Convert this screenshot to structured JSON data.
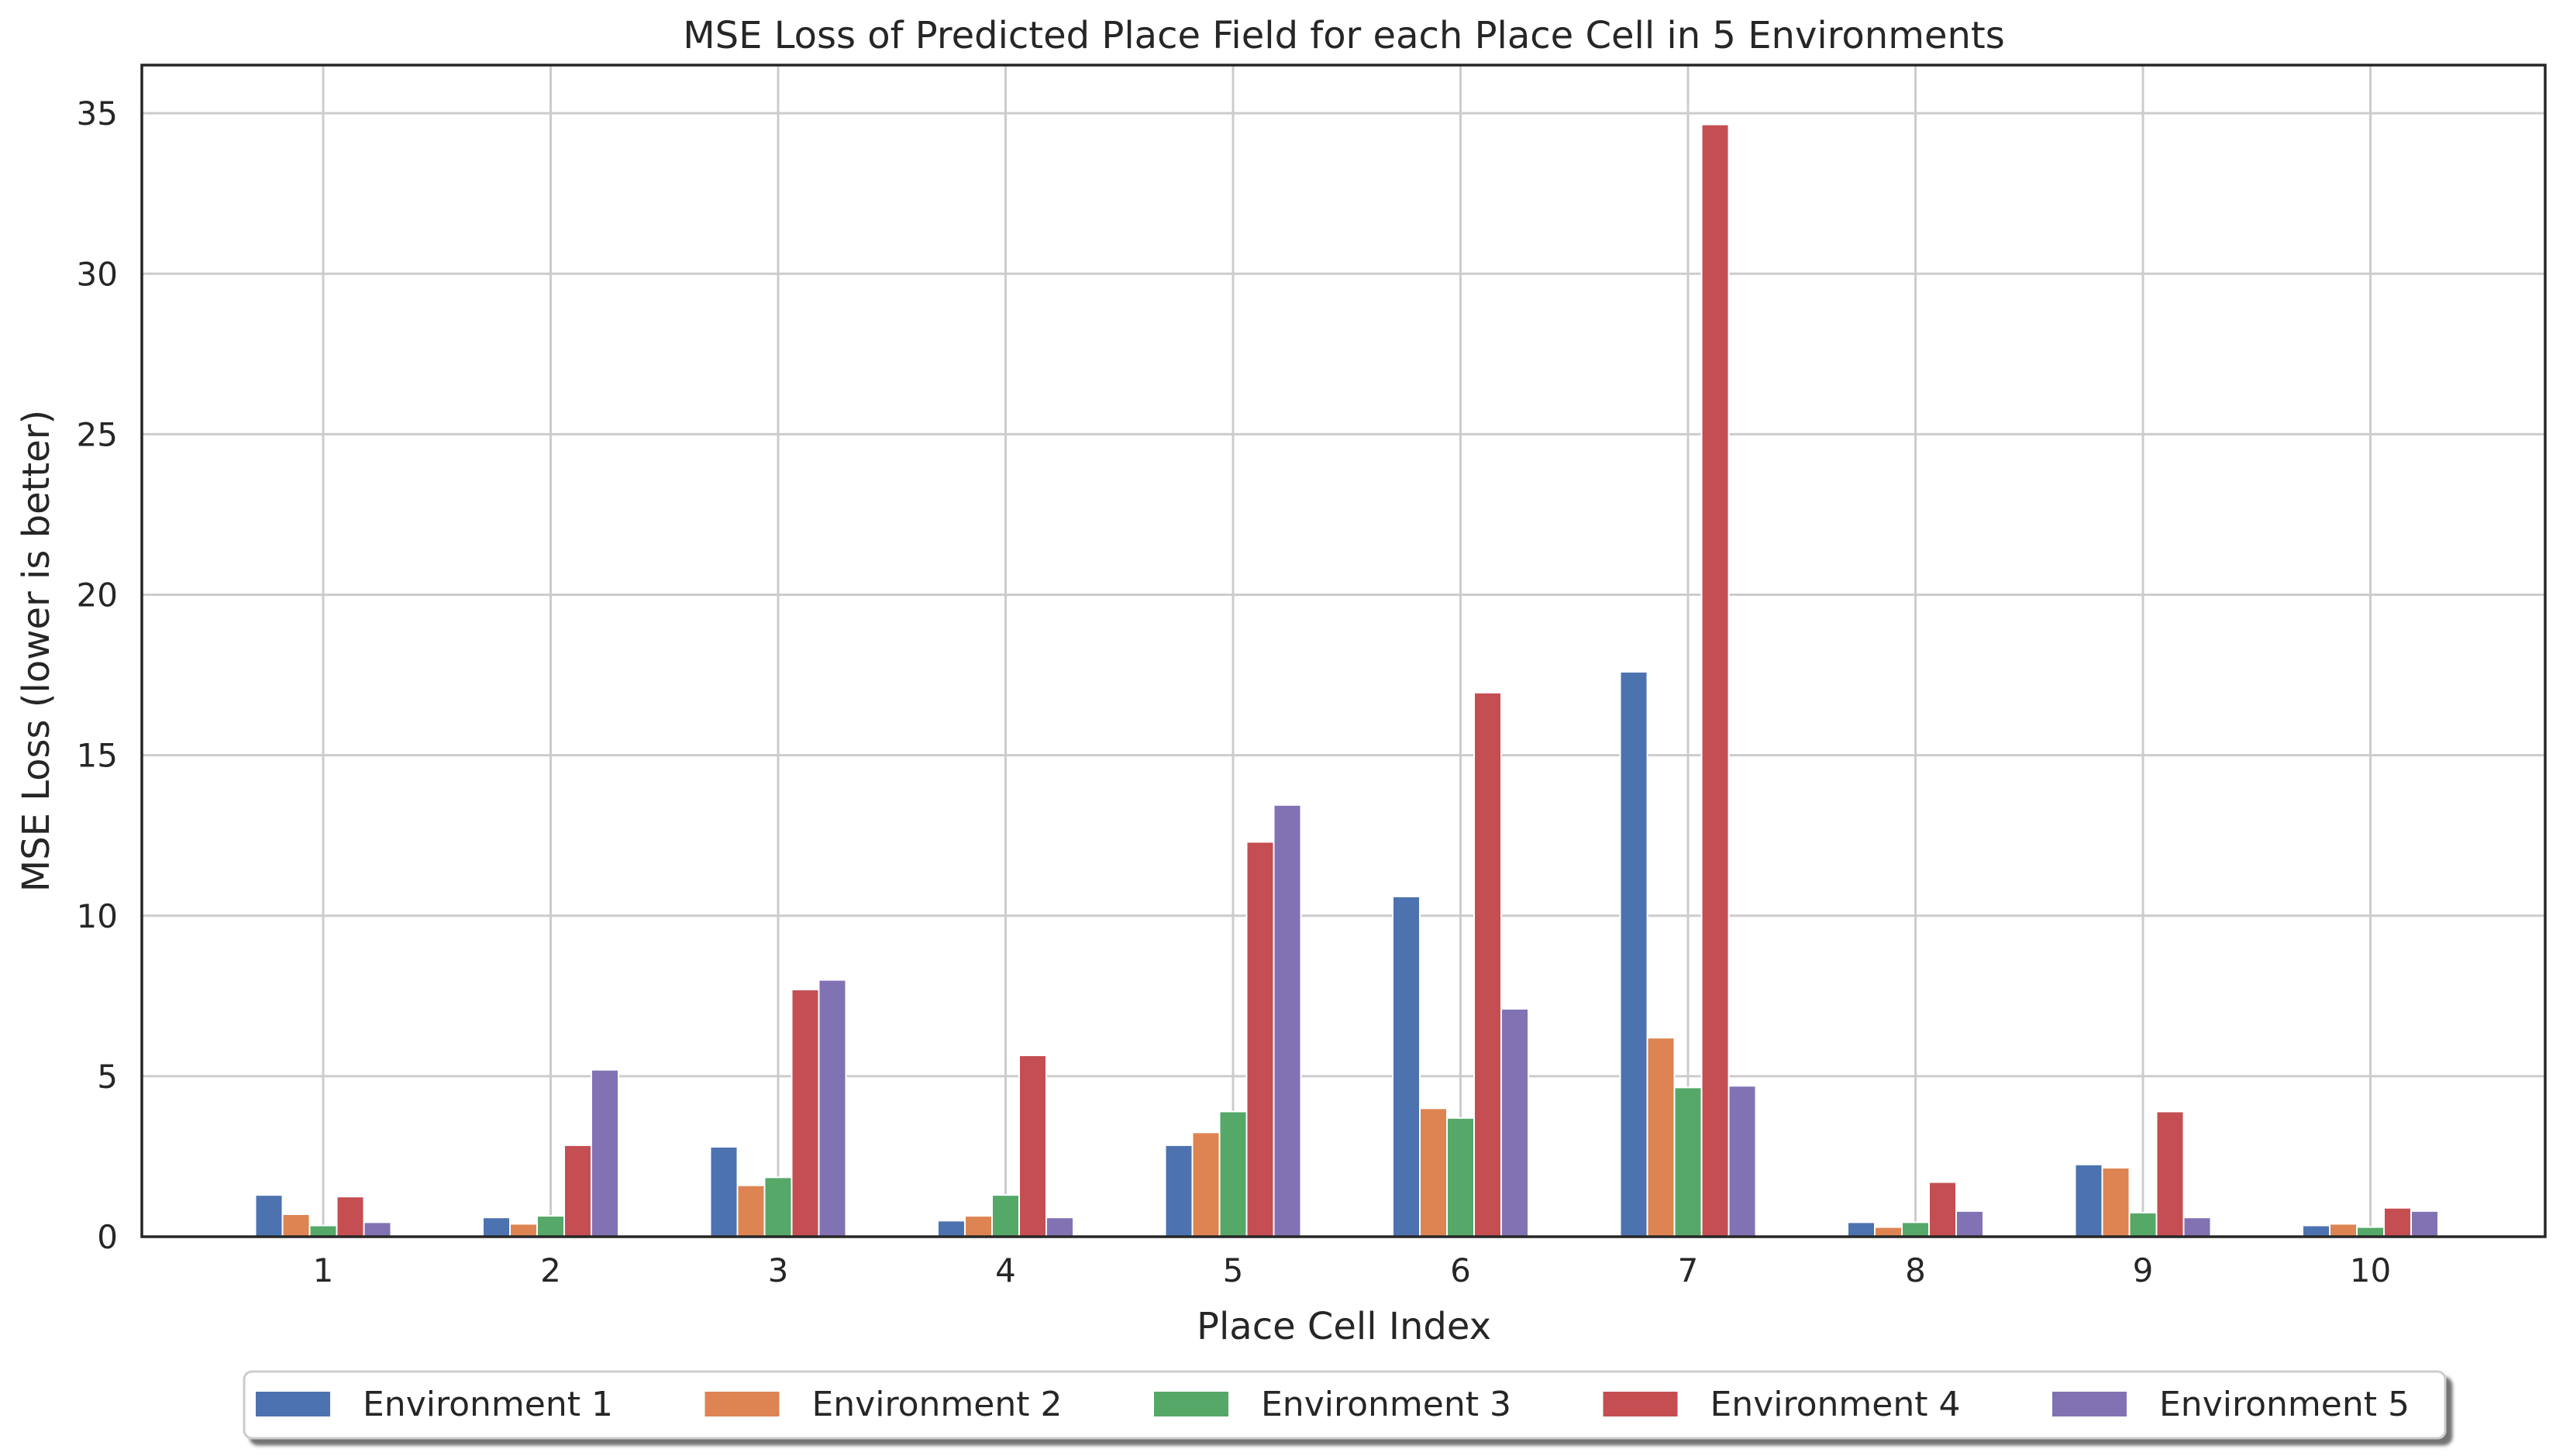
{
  "chart_data": {
    "type": "bar",
    "title": "MSE Loss of Predicted Place Field for each Place Cell in 5 Environments",
    "xlabel": "Place Cell Index",
    "ylabel": "MSE Loss (lower is better)",
    "categories": [
      "1",
      "2",
      "3",
      "4",
      "5",
      "6",
      "7",
      "8",
      "9",
      "10"
    ],
    "ylim": [
      0,
      36.5
    ],
    "yticks": [
      0,
      5,
      10,
      15,
      20,
      25,
      30,
      35
    ],
    "grid": true,
    "legend_position": "bottom-center",
    "series": [
      {
        "name": "Environment 1",
        "color": "#4c72b0",
        "values": [
          1.3,
          0.6,
          2.8,
          0.5,
          2.85,
          10.6,
          17.6,
          0.45,
          2.25,
          0.35
        ]
      },
      {
        "name": "Environment 2",
        "color": "#dd8452",
        "values": [
          0.7,
          0.4,
          1.6,
          0.65,
          3.25,
          4.0,
          6.2,
          0.3,
          2.15,
          0.4
        ]
      },
      {
        "name": "Environment 3",
        "color": "#55a868",
        "values": [
          0.35,
          0.65,
          1.85,
          1.3,
          3.9,
          3.7,
          4.65,
          0.45,
          0.75,
          0.3
        ]
      },
      {
        "name": "Environment 4",
        "color": "#c44e52",
        "values": [
          1.25,
          2.85,
          7.7,
          5.65,
          12.3,
          16.95,
          34.65,
          1.7,
          3.9,
          0.9
        ]
      },
      {
        "name": "Environment 5",
        "color": "#8172b3",
        "values": [
          0.45,
          5.2,
          8.0,
          0.6,
          13.45,
          7.1,
          4.7,
          0.8,
          0.6,
          0.8
        ]
      }
    ]
  }
}
